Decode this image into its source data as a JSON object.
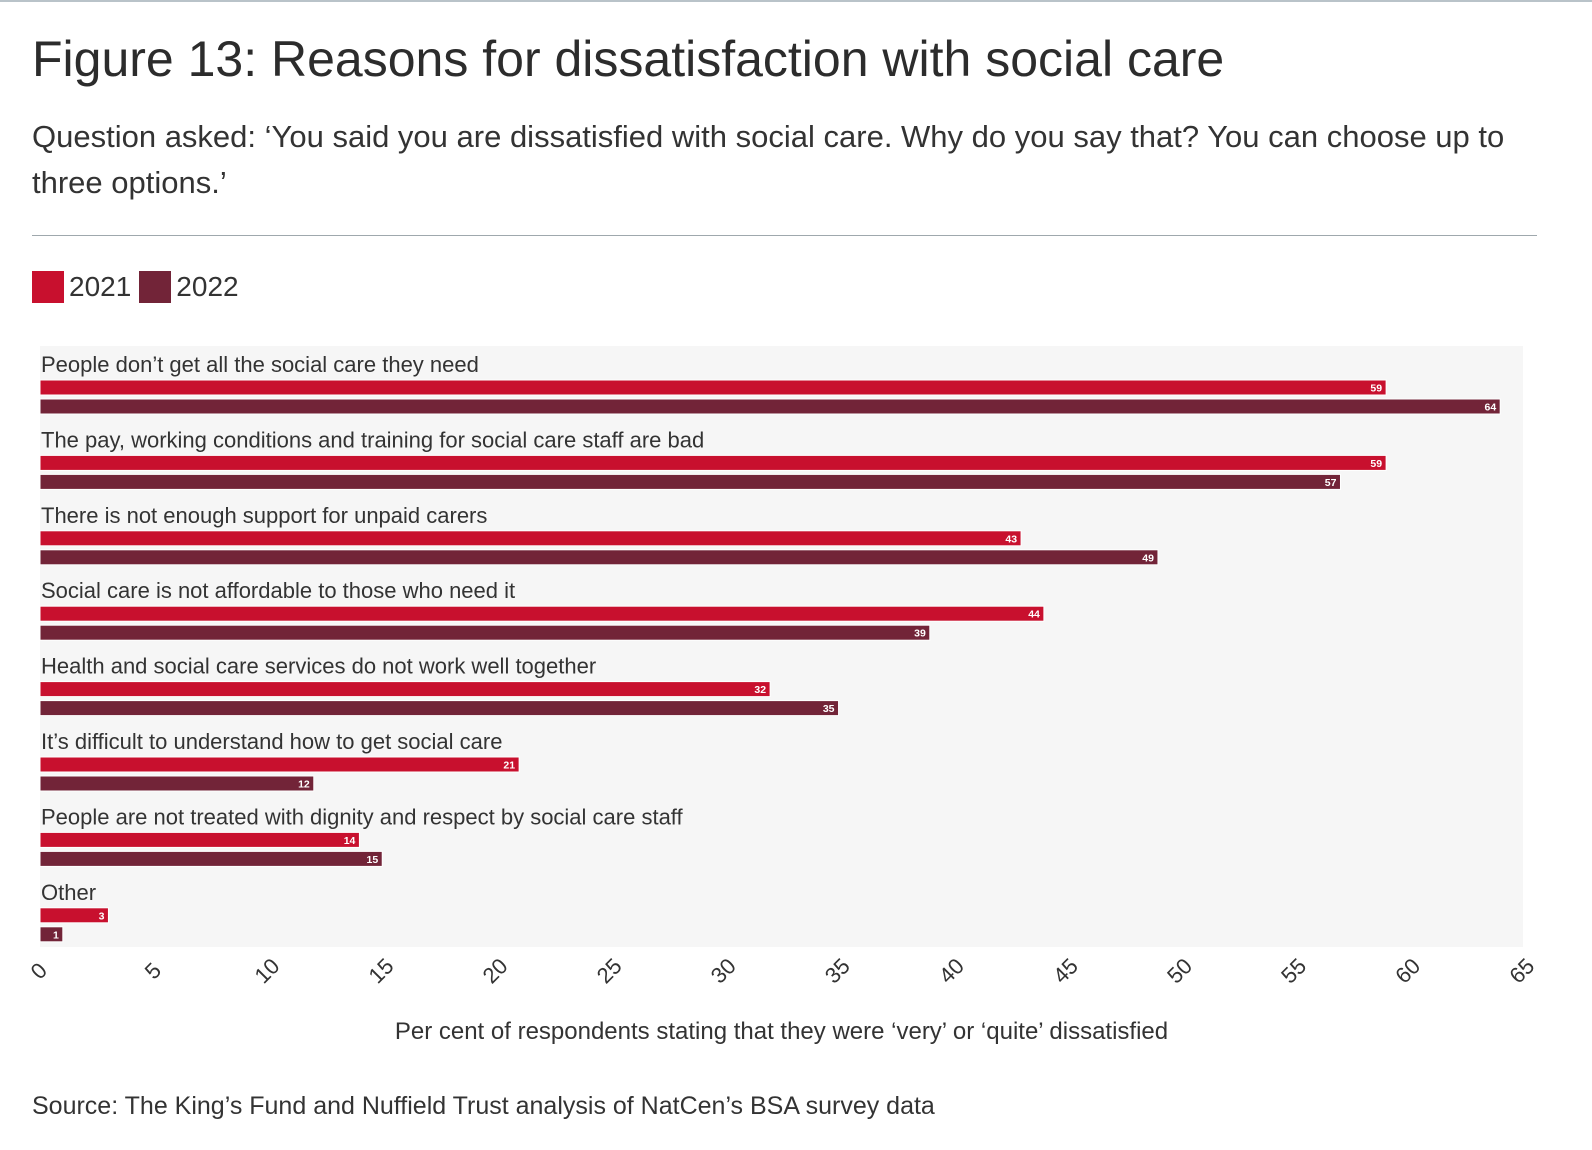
{
  "figure": {
    "title": "Figure 13: Reasons for dissatisfaction with social care",
    "subtitle": "Question asked: ‘You said you are dissatisfied with social care. Why do you say that? You can choose up to three options.’",
    "source": "Source: The King’s Fund and Nuffield Trust analysis of NatCen’s BSA survey data"
  },
  "legend": [
    {
      "label": "2021",
      "color": "#c8102e"
    },
    {
      "label": "2022",
      "color": "#722438"
    }
  ],
  "chart_data": {
    "type": "bar",
    "orientation": "horizontal",
    "title": "Figure 13: Reasons for dissatisfaction with social care",
    "xlabel": "Per cent of respondents stating that they were ‘very’ or ‘quite’ dissatisfied",
    "ylabel": "",
    "xlim": [
      0,
      65
    ],
    "xticks": [
      0,
      5,
      10,
      15,
      20,
      25,
      30,
      35,
      40,
      45,
      50,
      55,
      60,
      65
    ],
    "categories": [
      "People don’t get all the social care they need",
      "The pay, working conditions and training for social care staff are bad",
      "There is not enough support for unpaid carers",
      "Social care is not affordable to those who need it",
      "Health and social care services do not work well together",
      "It’s difficult to understand how to get social care",
      "People are not treated with dignity and respect by social care staff",
      "Other"
    ],
    "series": [
      {
        "name": "2021",
        "color": "#c8102e",
        "values": [
          59,
          59,
          43,
          44,
          32,
          21,
          14,
          3
        ]
      },
      {
        "name": "2022",
        "color": "#722438",
        "values": [
          64,
          57,
          49,
          39,
          35,
          12,
          15,
          1
        ]
      }
    ],
    "data_labels": true,
    "grid": false,
    "legend_position": "top-left"
  }
}
